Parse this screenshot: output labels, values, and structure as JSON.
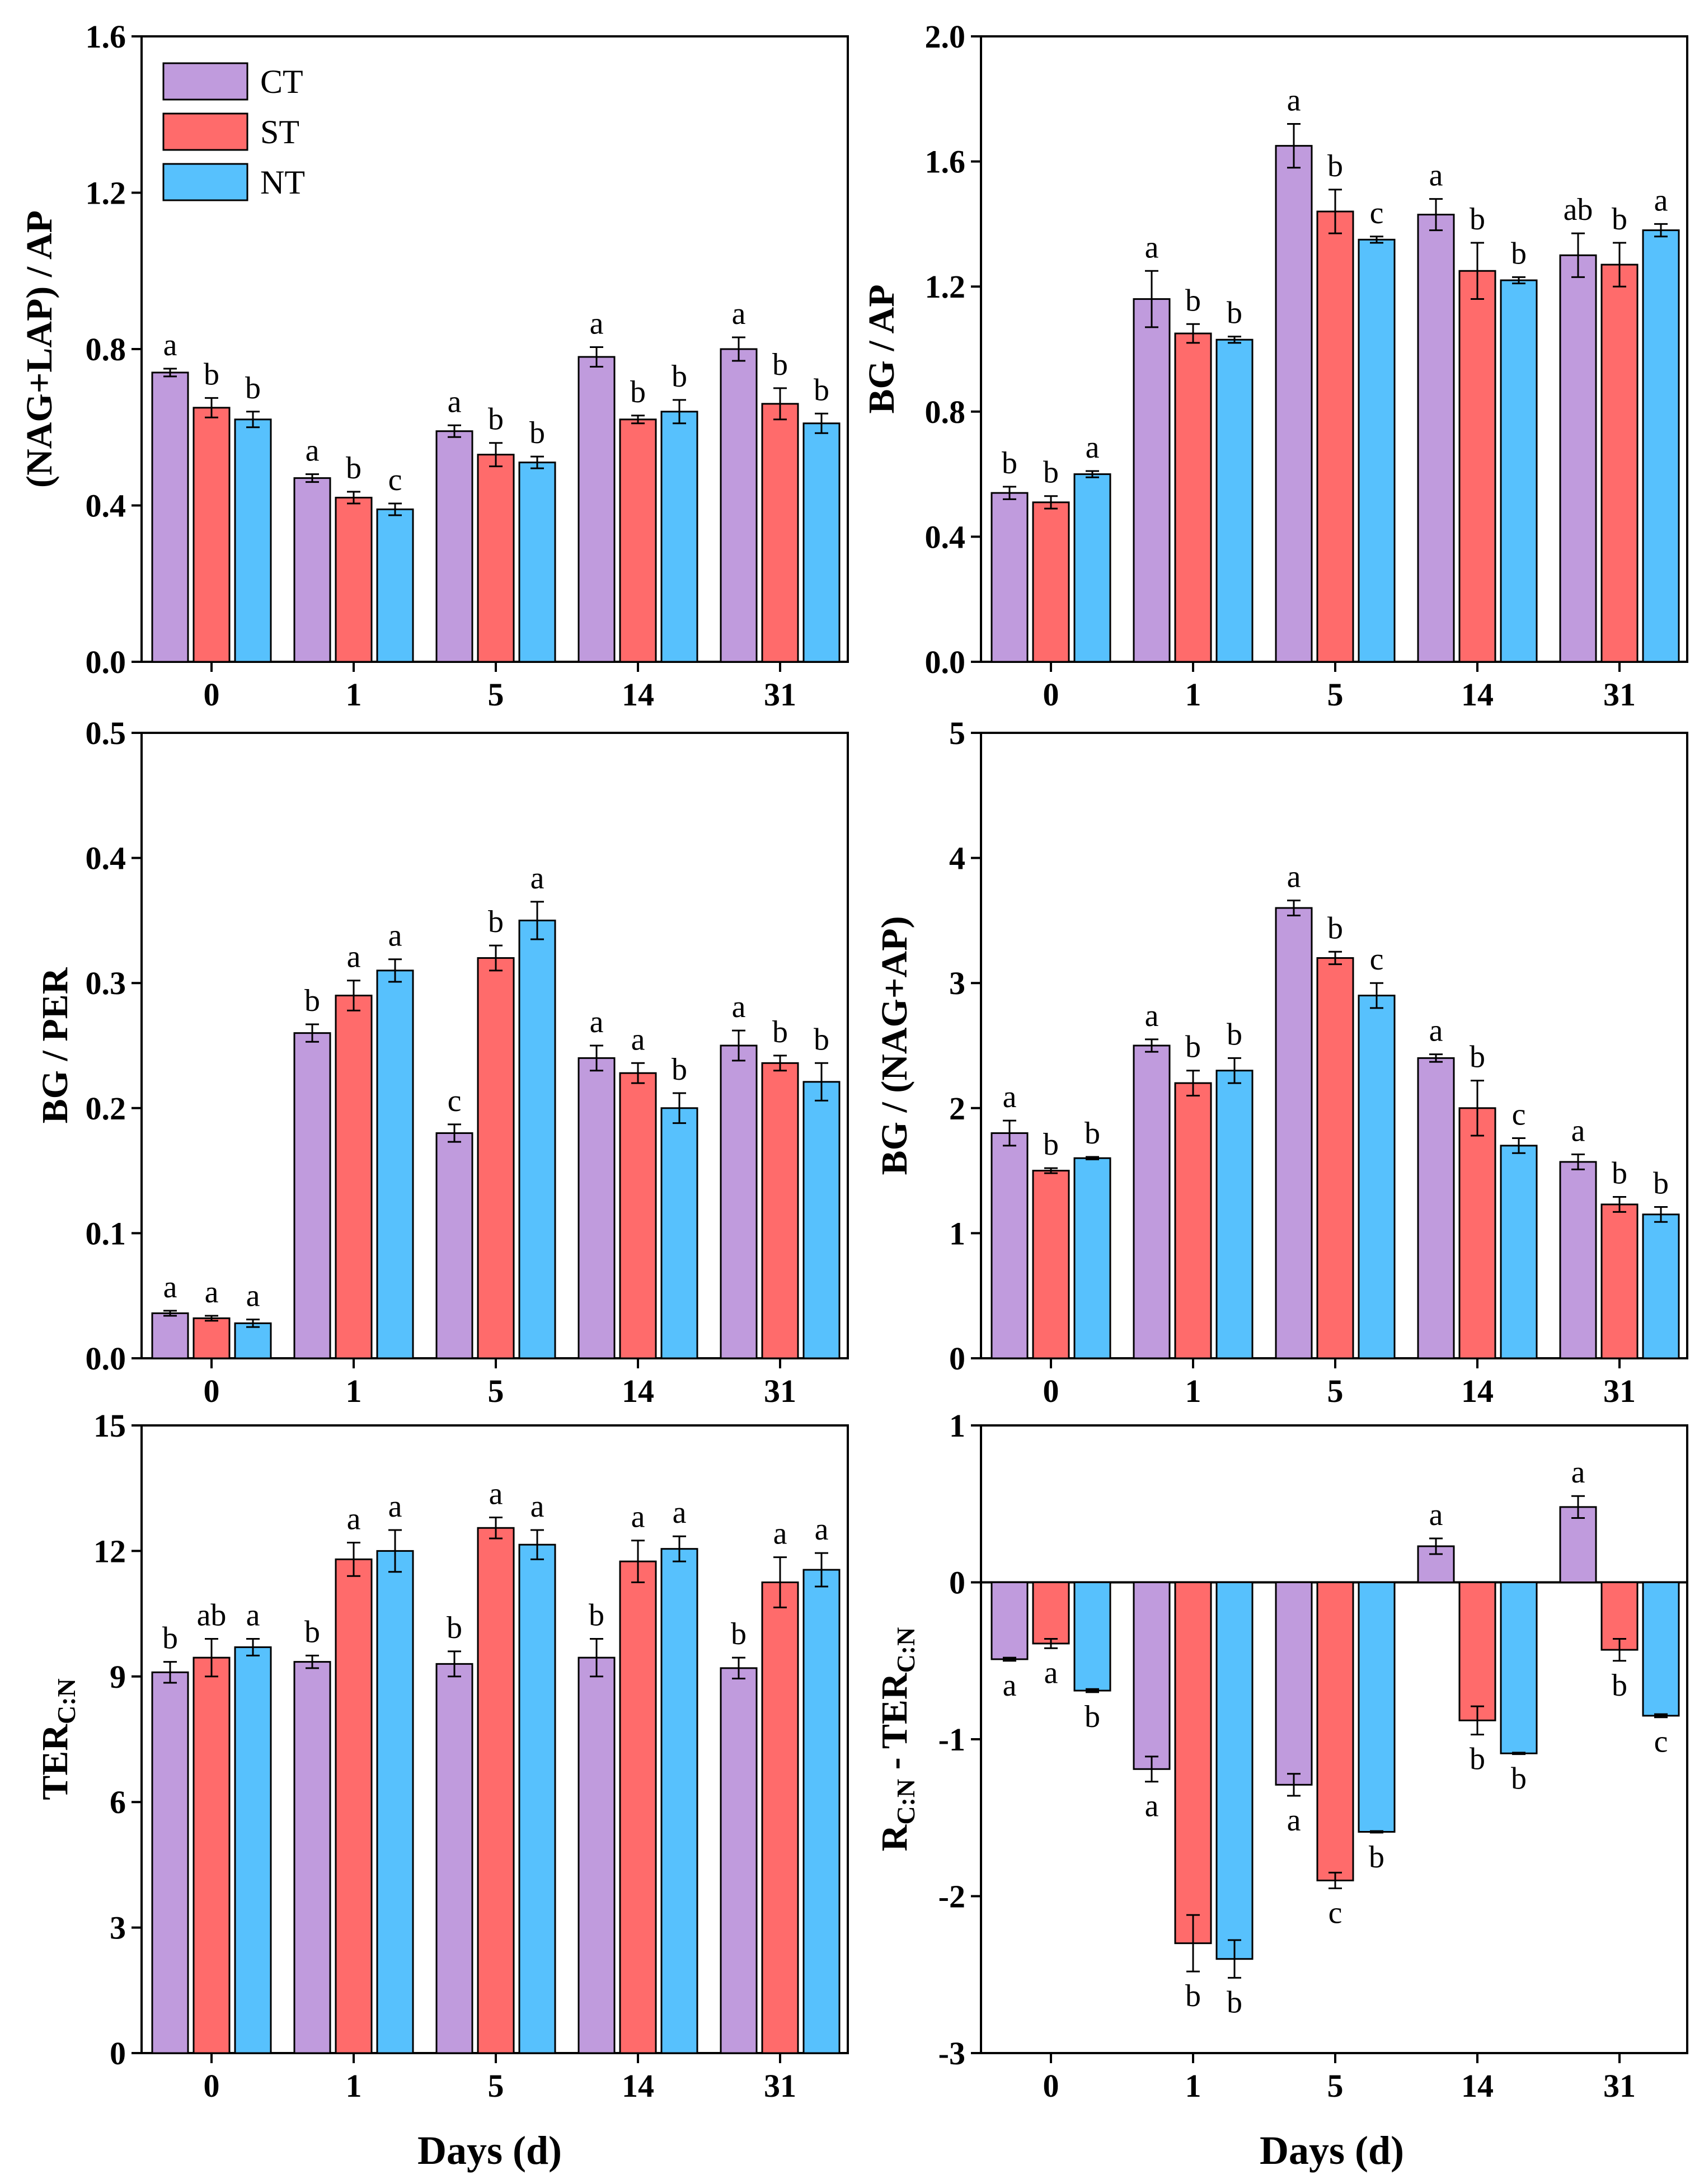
{
  "series_colors": {
    "CT": "#c09bdd",
    "ST": "#ff6b6b",
    "NT": "#57c1fd"
  },
  "legend": [
    "CT",
    "ST",
    "NT"
  ],
  "shared_xlabel": "Days (d)",
  "chart_data": [
    {
      "type": "bar",
      "ylabel": "(NAG+LAP) / AP",
      "categories": [
        "0",
        "1",
        "5",
        "14",
        "31"
      ],
      "ylim": [
        0,
        1.6
      ],
      "yticks": [
        0.0,
        0.4,
        0.8,
        1.2,
        1.6
      ],
      "tick_labels": [
        "0.0",
        "0.4",
        "0.8",
        "1.2",
        "1.6"
      ],
      "series": [
        {
          "name": "CT",
          "values": [
            0.74,
            0.47,
            0.59,
            0.78,
            0.8
          ],
          "errors": [
            0.01,
            0.01,
            0.015,
            0.025,
            0.03
          ],
          "letters": [
            "a",
            "a",
            "a",
            "a",
            "a"
          ]
        },
        {
          "name": "ST",
          "values": [
            0.65,
            0.42,
            0.53,
            0.62,
            0.66
          ],
          "errors": [
            0.025,
            0.015,
            0.03,
            0.01,
            0.04
          ],
          "letters": [
            "b",
            "b",
            "b",
            "b",
            "b"
          ]
        },
        {
          "name": "NT",
          "values": [
            0.62,
            0.39,
            0.51,
            0.64,
            0.61
          ],
          "errors": [
            0.02,
            0.015,
            0.015,
            0.03,
            0.025
          ],
          "letters": [
            "b",
            "c",
            "b",
            "b",
            "b"
          ]
        }
      ]
    },
    {
      "type": "bar",
      "ylabel": "BG / AP",
      "categories": [
        "0",
        "1",
        "5",
        "14",
        "31"
      ],
      "ylim": [
        0,
        2.0
      ],
      "yticks": [
        0.0,
        0.4,
        0.8,
        1.2,
        1.6,
        2.0
      ],
      "tick_labels": [
        "0.0",
        "0.4",
        "0.8",
        "1.2",
        "1.6",
        "2.0"
      ],
      "series": [
        {
          "name": "CT",
          "values": [
            0.54,
            1.16,
            1.65,
            1.43,
            1.3
          ],
          "errors": [
            0.02,
            0.09,
            0.07,
            0.05,
            0.07
          ],
          "letters": [
            "b",
            "a",
            "a",
            "a",
            "ab"
          ]
        },
        {
          "name": "ST",
          "values": [
            0.51,
            1.05,
            1.44,
            1.25,
            1.27
          ],
          "errors": [
            0.02,
            0.03,
            0.07,
            0.09,
            0.07
          ],
          "letters": [
            "b",
            "b",
            "b",
            "b",
            "b"
          ]
        },
        {
          "name": "NT",
          "values": [
            0.6,
            1.03,
            1.35,
            1.22,
            1.38
          ],
          "errors": [
            0.01,
            0.01,
            0.01,
            0.01,
            0.02
          ],
          "letters": [
            "a",
            "b",
            "c",
            "b",
            "a"
          ]
        }
      ]
    },
    {
      "type": "bar",
      "ylabel": "BG / PER",
      "categories": [
        "0",
        "1",
        "5",
        "14",
        "31"
      ],
      "ylim": [
        0,
        0.5
      ],
      "yticks": [
        0.0,
        0.1,
        0.2,
        0.3,
        0.4,
        0.5
      ],
      "tick_labels": [
        "0.0",
        "0.1",
        "0.2",
        "0.3",
        "0.4",
        "0.5"
      ],
      "series": [
        {
          "name": "CT",
          "values": [
            0.036,
            0.26,
            0.18,
            0.24,
            0.25
          ],
          "errors": [
            0.002,
            0.007,
            0.007,
            0.01,
            0.012
          ],
          "letters": [
            "a",
            "b",
            "c",
            "a",
            "a"
          ]
        },
        {
          "name": "ST",
          "values": [
            0.032,
            0.29,
            0.32,
            0.228,
            0.236
          ],
          "errors": [
            0.002,
            0.012,
            0.01,
            0.008,
            0.006
          ],
          "letters": [
            "a",
            "a",
            "b",
            "a",
            "b"
          ]
        },
        {
          "name": "NT",
          "values": [
            0.028,
            0.31,
            0.35,
            0.2,
            0.221
          ],
          "errors": [
            0.003,
            0.009,
            0.015,
            0.012,
            0.015
          ],
          "letters": [
            "a",
            "a",
            "a",
            "b",
            "b"
          ]
        }
      ]
    },
    {
      "type": "bar",
      "ylabel": "BG / (NAG+AP)",
      "categories": [
        "0",
        "1",
        "5",
        "14",
        "31"
      ],
      "ylim": [
        0,
        5
      ],
      "yticks": [
        0,
        1,
        2,
        3,
        4,
        5
      ],
      "tick_labels": [
        "0",
        "1",
        "2",
        "3",
        "4",
        "5"
      ],
      "series": [
        {
          "name": "CT",
          "values": [
            1.8,
            2.5,
            3.6,
            2.4,
            1.57
          ],
          "errors": [
            0.1,
            0.05,
            0.06,
            0.03,
            0.06
          ],
          "letters": [
            "a",
            "a",
            "a",
            "a",
            "a"
          ]
        },
        {
          "name": "ST",
          "values": [
            1.5,
            2.2,
            3.2,
            2.0,
            1.23
          ],
          "errors": [
            0.02,
            0.1,
            0.05,
            0.22,
            0.06
          ],
          "letters": [
            "b",
            "b",
            "b",
            "b",
            "b"
          ]
        },
        {
          "name": "NT",
          "values": [
            1.6,
            2.3,
            2.9,
            1.7,
            1.15
          ],
          "errors": [
            0.01,
            0.1,
            0.1,
            0.06,
            0.06
          ],
          "letters": [
            "b",
            "b",
            "c",
            "c",
            "b"
          ]
        }
      ]
    },
    {
      "type": "bar",
      "ylabel": "TER",
      "ylabel_sub": "C:N",
      "categories": [
        "0",
        "1",
        "5",
        "14",
        "31"
      ],
      "ylim": [
        0,
        15
      ],
      "yticks": [
        0,
        3,
        6,
        9,
        12,
        15
      ],
      "tick_labels": [
        "0",
        "3",
        "6",
        "9",
        "12",
        "15"
      ],
      "series": [
        {
          "name": "CT",
          "values": [
            9.1,
            9.35,
            9.3,
            9.45,
            9.2
          ],
          "errors": [
            0.25,
            0.15,
            0.3,
            0.45,
            0.25
          ],
          "letters": [
            "b",
            "b",
            "b",
            "b",
            "b"
          ]
        },
        {
          "name": "ST",
          "values": [
            9.45,
            11.8,
            12.55,
            11.75,
            11.25
          ],
          "errors": [
            0.45,
            0.4,
            0.25,
            0.5,
            0.6
          ],
          "letters": [
            "ab",
            "a",
            "a",
            "a",
            "a"
          ]
        },
        {
          "name": "NT",
          "values": [
            9.7,
            12.0,
            12.15,
            12.05,
            11.55
          ],
          "errors": [
            0.2,
            0.5,
            0.35,
            0.3,
            0.4
          ],
          "letters": [
            "a",
            "a",
            "a",
            "a",
            "a"
          ]
        }
      ]
    },
    {
      "type": "bar",
      "ylabel": "R",
      "ylabel_sub1": "C:N",
      "ylabel_mid": " - TER",
      "ylabel_sub2": "C:N",
      "xlabel": "Days (d)",
      "categories": [
        "0",
        "1",
        "5",
        "14",
        "31"
      ],
      "ylim": [
        -3,
        1
      ],
      "yticks": [
        -3,
        -2,
        -1,
        0,
        1
      ],
      "tick_labels": [
        "-3",
        "-2",
        "-1",
        "0",
        "1"
      ],
      "series": [
        {
          "name": "CT",
          "values": [
            -0.49,
            -1.19,
            -1.29,
            0.23,
            0.48
          ],
          "errors": [
            0.01,
            0.08,
            0.07,
            0.05,
            0.07
          ],
          "letters": [
            "a",
            "a",
            "a",
            "a",
            "a"
          ]
        },
        {
          "name": "ST",
          "values": [
            -0.39,
            -2.3,
            -1.9,
            -0.88,
            -0.43
          ],
          "errors": [
            0.03,
            0.18,
            0.05,
            0.09,
            0.07
          ],
          "letters": [
            "a",
            "b",
            "c",
            "b",
            "b"
          ]
        },
        {
          "name": "NT",
          "values": [
            -0.69,
            -2.4,
            -1.59,
            -1.09,
            -0.85
          ],
          "errors": [
            0.01,
            0.12,
            0.005,
            0.005,
            0.01
          ],
          "letters": [
            "b",
            "b",
            "b",
            "b",
            "c"
          ]
        }
      ]
    }
  ]
}
